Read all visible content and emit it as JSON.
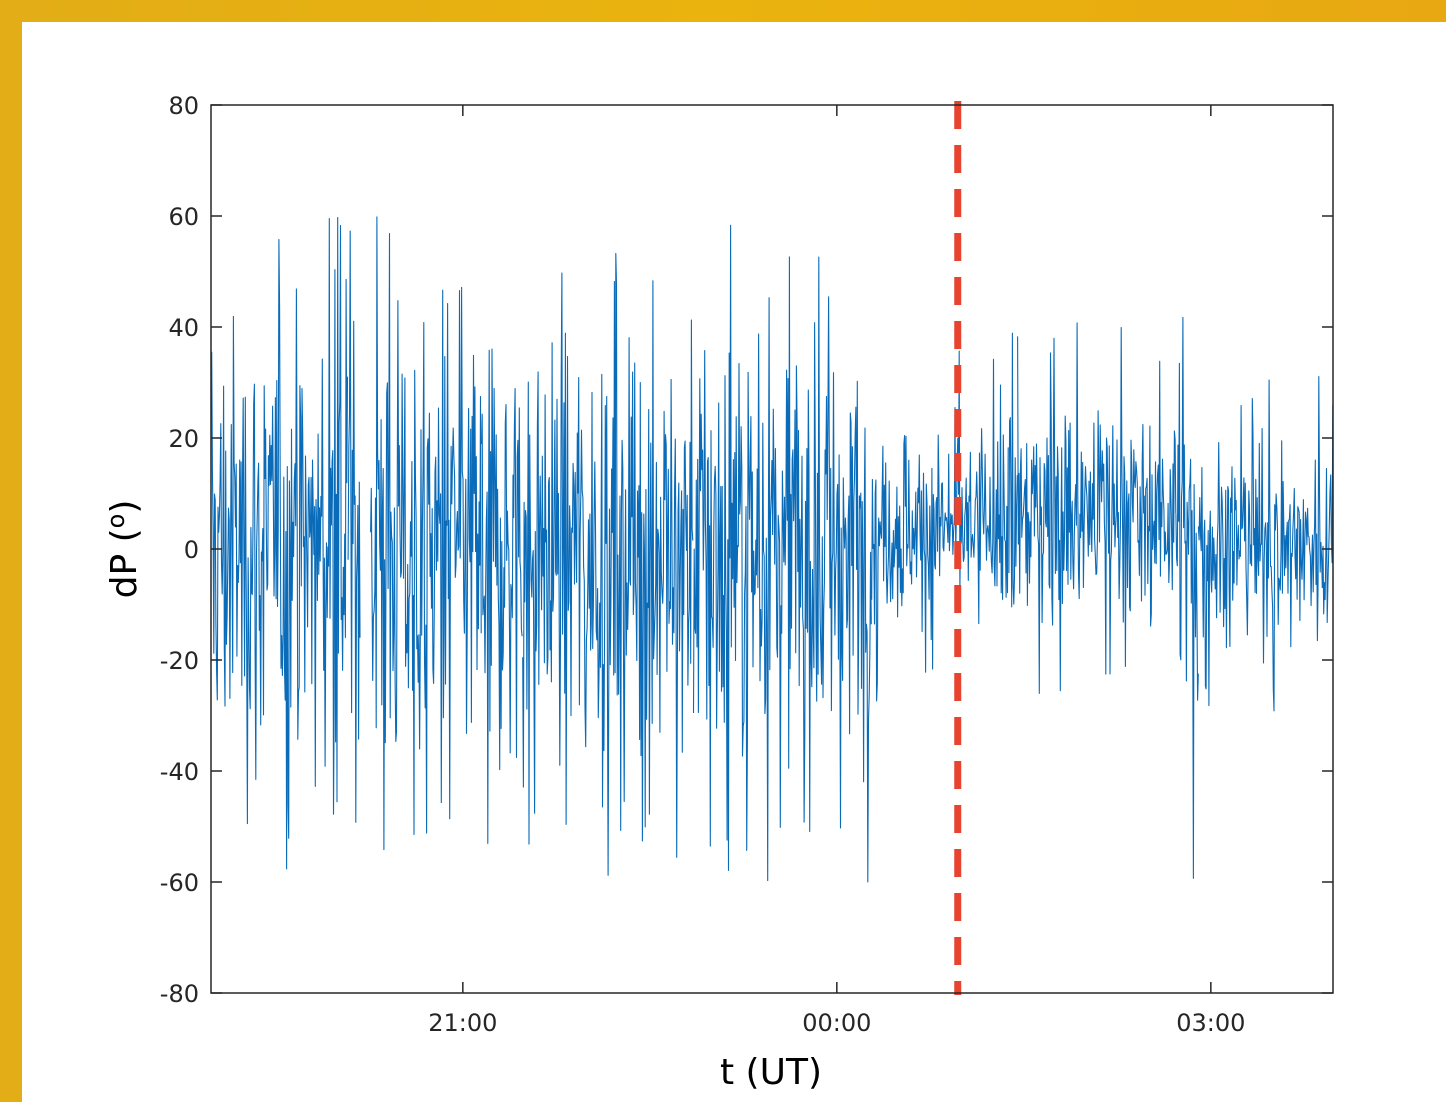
{
  "colors": {
    "frame_orange": "#e2ad16",
    "series_blue": "#0a6bb8",
    "marker_red": "#e8432e",
    "axis": "#262626"
  },
  "chart_data": {
    "type": "line",
    "xlabel": "t (UT)",
    "ylabel_text": "dP (",
    "ylabel_sup": "o",
    "ylabel_close": ")",
    "ylim": [
      -80,
      80
    ],
    "xlim_hours": [
      18.98,
      27.98
    ],
    "yticks": [
      80,
      60,
      40,
      20,
      0,
      -20,
      -40,
      -60,
      -80
    ],
    "ytick_labels": [
      "80",
      "60",
      "40",
      "20",
      "0",
      "-20",
      "-40",
      "-60",
      "-80"
    ],
    "xticks_hours": [
      21,
      24,
      27
    ],
    "xtick_labels": [
      "21:00",
      "00:00",
      "03:00"
    ],
    "grid": false,
    "vertical_marker_hours": 24.97,
    "vertical_marker_style": "dashed",
    "series": [
      {
        "segments": [
          {
            "t_start": 18.98,
            "t_end": 20.08,
            "min": -60,
            "max": 60
          },
          {
            "t_start": 20.08,
            "t_end": 20.18,
            "min": -60,
            "max": 60
          },
          {
            "t_start": 20.26,
            "t_end": 21.15,
            "min": -60,
            "max": 60
          },
          {
            "t_start": 21.15,
            "t_end": 21.48,
            "min": -60,
            "max": 60
          },
          {
            "t_start": 21.48,
            "t_end": 22.85,
            "min": -60,
            "max": 60
          },
          {
            "t_start": 22.85,
            "t_end": 24.28,
            "min": -60,
            "max": 60
          },
          {
            "t_start": 24.28,
            "t_end": 25.38,
            "min": -28,
            "max": 36
          },
          {
            "t_start": 25.38,
            "t_end": 25.45,
            "min": -60,
            "max": 60
          },
          {
            "t_start": 25.45,
            "t_end": 26.72,
            "min": -28,
            "max": 42
          },
          {
            "t_start": 26.72,
            "t_end": 26.9,
            "min": -60,
            "max": 60
          },
          {
            "t_start": 26.9,
            "t_end": 27.98,
            "min": -30,
            "max": 32
          }
        ]
      }
    ]
  }
}
